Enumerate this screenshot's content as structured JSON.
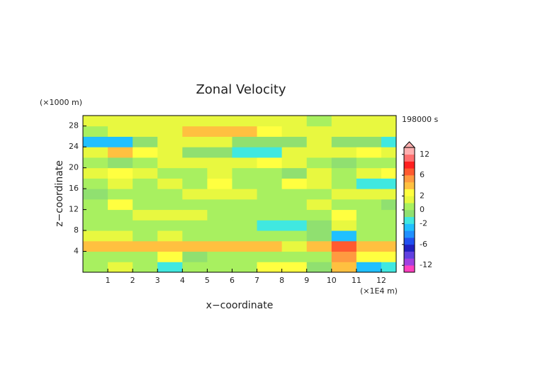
{
  "chart_data": {
    "type": "heatmap",
    "title": "Zonal Velocity",
    "y_unit": "(×1000 m)",
    "x_unit": "(×1E4 m)",
    "time_label": "198000 s",
    "x_label": "x−coordinate",
    "y_label": "z−coordinate",
    "xlim": [
      0,
      12.6
    ],
    "ylim": [
      0,
      30
    ],
    "xticks": [
      1,
      2,
      3,
      4,
      5,
      6,
      7,
      8,
      9,
      10,
      11,
      12
    ],
    "yticks": [
      4,
      8,
      12,
      16,
      20,
      24,
      28
    ],
    "x": [
      0.5,
      1.5,
      2.5,
      3.5,
      4.5,
      5.5,
      6.5,
      7.5,
      8.5,
      9.5,
      10.5,
      11.5,
      12.5
    ],
    "y": [
      1,
      3,
      5,
      7,
      9,
      11,
      13,
      15,
      17,
      19,
      21,
      23,
      25,
      27,
      29
    ],
    "z_values": [
      [
        0.5,
        1.5,
        0.5,
        -2,
        0.5,
        0.5,
        0.5,
        2,
        2,
        -1,
        3,
        -3,
        -2
      ],
      [
        0.5,
        0.5,
        0.5,
        2,
        -1,
        0.5,
        0.5,
        0.5,
        0.5,
        0.5,
        5,
        2,
        2
      ],
      [
        3,
        3.5,
        3.5,
        3,
        3.5,
        3.5,
        3.5,
        3,
        1.5,
        3,
        7,
        3,
        3
      ],
      [
        1.5,
        1.5,
        0.5,
        1.5,
        0.5,
        0.5,
        0.5,
        0.5,
        0.5,
        -1,
        -3,
        0.5,
        0.5
      ],
      [
        0.5,
        0.5,
        0.5,
        0.5,
        0.5,
        0.5,
        0.5,
        -1.5,
        -1.5,
        -1,
        1.5,
        0.5,
        0.5
      ],
      [
        0.5,
        0.5,
        1.5,
        1.5,
        1.5,
        0.5,
        0.5,
        0.5,
        0.5,
        0.5,
        2.5,
        0.5,
        0.5
      ],
      [
        0.5,
        2.5,
        0.5,
        0.5,
        0.5,
        0.5,
        0.5,
        0.5,
        0.5,
        1.5,
        0.5,
        0.5,
        -1
      ],
      [
        -1,
        0.5,
        0.5,
        0.5,
        1.5,
        1.5,
        1.5,
        0.5,
        0.5,
        0.5,
        1.5,
        1.5,
        1.5
      ],
      [
        0.5,
        1.5,
        0.5,
        1.5,
        0.5,
        2.5,
        0.5,
        0.5,
        2.5,
        1.5,
        0.5,
        -1.5,
        -1.5
      ],
      [
        1.5,
        2.5,
        1.5,
        0.5,
        0.5,
        1.5,
        0.5,
        0.5,
        -1,
        1.5,
        0.5,
        1.5,
        2.5
      ],
      [
        0.5,
        -1,
        0.5,
        1.5,
        1.5,
        1.5,
        1.5,
        2.5,
        1.5,
        0.5,
        -1,
        0.5,
        0.5
      ],
      [
        1.5,
        3,
        2.5,
        1.5,
        -1,
        -1,
        -1.5,
        -1.5,
        1.5,
        1.5,
        1.5,
        2.5,
        1.5
      ],
      [
        -3,
        -2.5,
        -1,
        1.5,
        1.5,
        1.5,
        -1,
        -1,
        -1,
        1.5,
        -1,
        -1,
        -2
      ],
      [
        0.5,
        1.5,
        1.5,
        1.5,
        3,
        3,
        3,
        2.5,
        1.5,
        1.5,
        1.5,
        1.5,
        1.5
      ],
      [
        1.5,
        1.5,
        1.5,
        1.5,
        1.5,
        1.5,
        1.5,
        1.5,
        1.5,
        0.5,
        1.5,
        1.5,
        1.5
      ]
    ],
    "colorbar": {
      "levels": [
        -14,
        -12,
        -10,
        -8,
        -6,
        -4,
        -3,
        -2,
        -1,
        0,
        1,
        2,
        3,
        4,
        6,
        8,
        10,
        12,
        14
      ],
      "colors": [
        "#ff40c0",
        "#a040e0",
        "#6040e0",
        "#2020c0",
        "#2050f0",
        "#2090ff",
        "#20c0ff",
        "#40e8e0",
        "#90e070",
        "#a8f060",
        "#e8f840",
        "#ffff40",
        "#ffc040",
        "#ff9a40",
        "#ff5a30",
        "#ff2020",
        "#ff7070",
        "#ffb0b0"
      ],
      "extend_color": "#ffb0b0",
      "ticks": [
        12,
        6,
        2,
        0,
        -2,
        -6,
        -12
      ]
    }
  }
}
